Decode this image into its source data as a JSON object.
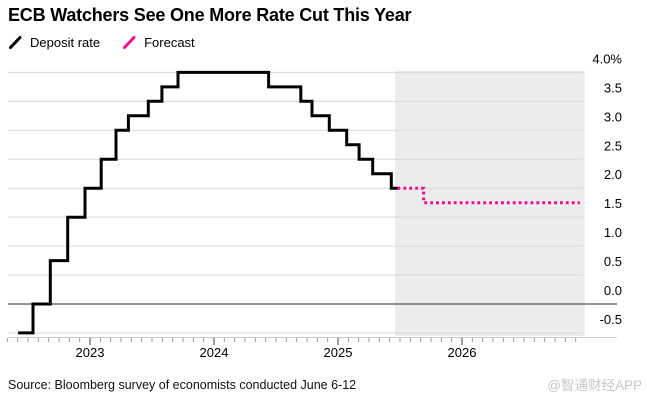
{
  "chart": {
    "title": "ECB Watchers See One More Rate Cut This Year",
    "source": "Source: Bloomberg survey of economists conducted June 6-12",
    "watermark": "@智通财经APP",
    "legend": [
      {
        "label": "Deposit rate",
        "color": "#000000"
      },
      {
        "label": "Forecast",
        "color": "#f10a8e"
      }
    ]
  },
  "chart_data": {
    "type": "line",
    "subtype": "step",
    "title": "ECB Watchers See One More Rate Cut This Year",
    "unit": "%",
    "grid": true,
    "legend_position": "top-left",
    "y_axis": {
      "side": "right",
      "range": [
        -0.5,
        4.0
      ],
      "ticks": [
        {
          "label": "4.0%",
          "value": 4.0
        },
        {
          "label": "3.5",
          "value": 3.5
        },
        {
          "label": "3.0",
          "value": 3.0
        },
        {
          "label": "2.5",
          "value": 2.5
        },
        {
          "label": "2.0",
          "value": 2.0
        },
        {
          "label": "1.5",
          "value": 1.5
        },
        {
          "label": "1.0",
          "value": 1.0
        },
        {
          "label": "0.5",
          "value": 0.5
        },
        {
          "label": "0.0",
          "value": 0.0
        },
        {
          "label": "-0.5",
          "value": -0.5
        }
      ],
      "zero_line_value": 0.0
    },
    "x_axis": {
      "range_decimal_years": [
        2022.33,
        2026.98
      ],
      "minor_ticks": "monthly",
      "year_ticks": [
        {
          "label": "2023",
          "t": 2023
        },
        {
          "label": "2024",
          "t": 2024
        },
        {
          "label": "2025",
          "t": 2025
        },
        {
          "label": "2026",
          "t": 2026
        }
      ]
    },
    "series": [
      {
        "name": "Deposit rate",
        "color": "#000000",
        "style": "solid",
        "step_points": [
          {
            "t": 2022.42,
            "v": -0.5
          },
          {
            "t": 2022.54,
            "v": 0.0
          },
          {
            "t": 2022.68,
            "v": 0.75
          },
          {
            "t": 2022.82,
            "v": 1.5
          },
          {
            "t": 2022.96,
            "v": 2.0
          },
          {
            "t": 2023.09,
            "v": 2.5
          },
          {
            "t": 2023.21,
            "v": 3.0
          },
          {
            "t": 2023.31,
            "v": 3.25
          },
          {
            "t": 2023.47,
            "v": 3.5
          },
          {
            "t": 2023.58,
            "v": 3.75
          },
          {
            "t": 2023.71,
            "v": 4.0
          },
          {
            "t": 2024.44,
            "v": 3.75
          },
          {
            "t": 2024.7,
            "v": 3.5
          },
          {
            "t": 2024.79,
            "v": 3.25
          },
          {
            "t": 2024.93,
            "v": 3.0
          },
          {
            "t": 2025.07,
            "v": 2.75
          },
          {
            "t": 2025.17,
            "v": 2.5
          },
          {
            "t": 2025.28,
            "v": 2.25
          },
          {
            "t": 2025.43,
            "v": 2.0
          }
        ],
        "end_t": 2025.48
      },
      {
        "name": "Forecast",
        "color": "#f10a8e",
        "style": "dotted",
        "step_points": [
          {
            "t": 2025.48,
            "v": 2.0
          },
          {
            "t": 2025.69,
            "v": 1.75
          }
        ],
        "end_t": 2026.95
      }
    ],
    "forecast_region": {
      "start_t": 2025.46,
      "end_t": 2026.99,
      "color": "#ececec"
    }
  }
}
